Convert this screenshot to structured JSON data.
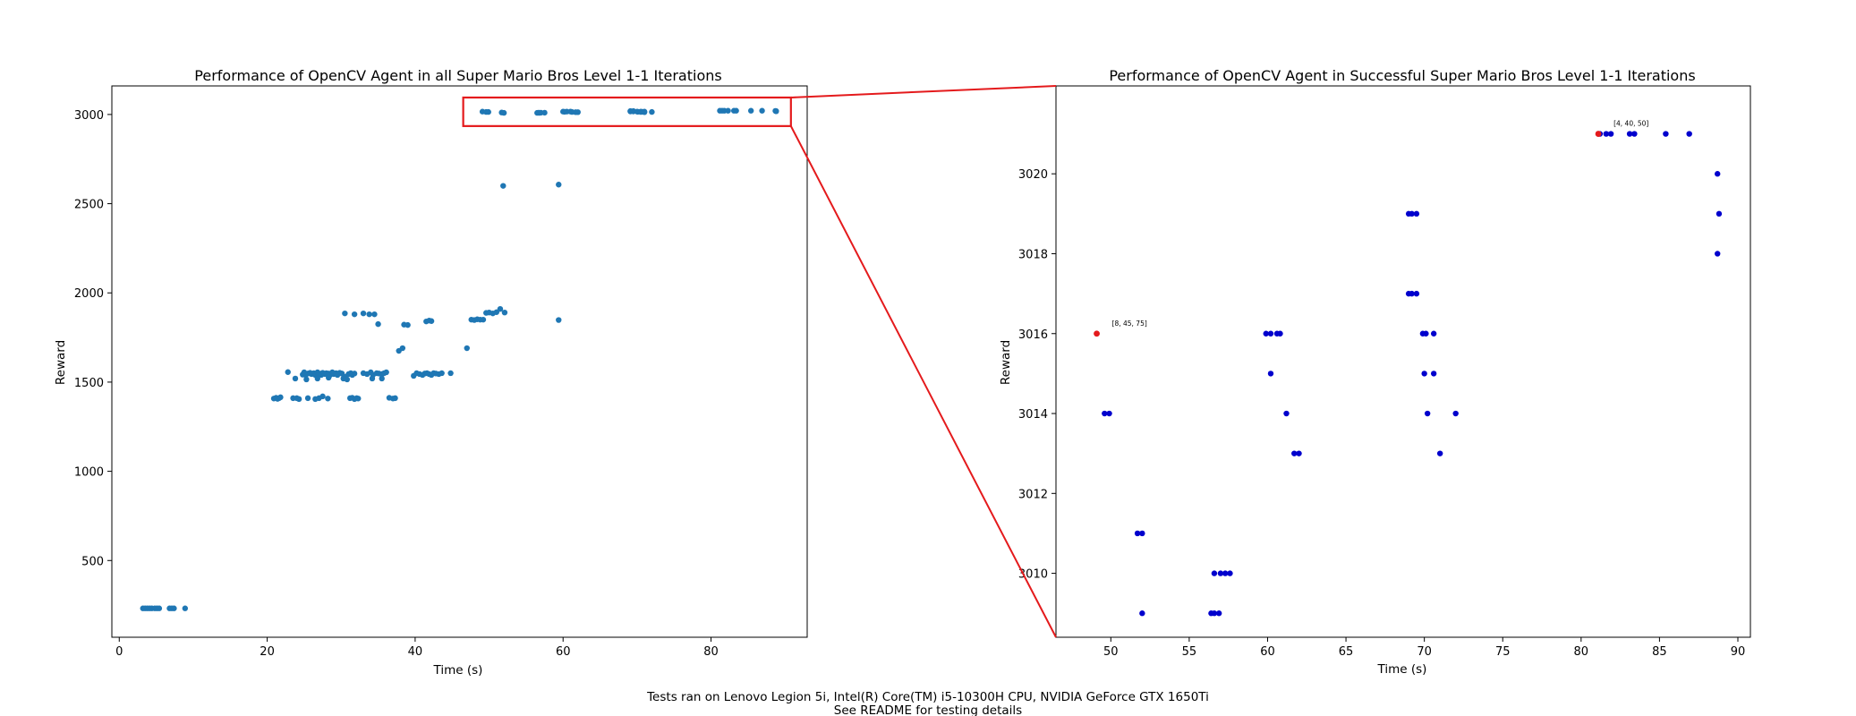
{
  "chart_data": [
    {
      "type": "scatter",
      "title": "Performance of OpenCV Agent in all Super Mario Bros Level 1-1 Iterations",
      "xlabel": "Time (s)",
      "ylabel": "Reward",
      "xlim": [
        -1,
        93
      ],
      "ylim": [
        70,
        3160
      ],
      "xticks": [
        0,
        20,
        40,
        60,
        80
      ],
      "yticks": [
        500,
        1000,
        1500,
        2000,
        2500,
        3000
      ],
      "color": "#1f77b4",
      "zoom_box": {
        "x": [
          46.5,
          90.8
        ],
        "y": [
          2935,
          3095
        ],
        "color": "#e41a1c"
      },
      "points": [
        [
          3.2,
          232
        ],
        [
          3.5,
          232
        ],
        [
          3.8,
          232
        ],
        [
          4.1,
          232
        ],
        [
          4.4,
          232
        ],
        [
          4.8,
          232
        ],
        [
          5.1,
          232
        ],
        [
          5.4,
          232
        ],
        [
          6.8,
          232
        ],
        [
          7.1,
          232
        ],
        [
          7.4,
          232
        ],
        [
          8.9,
          232
        ],
        [
          20.9,
          1408
        ],
        [
          21.2,
          1412
        ],
        [
          21.4,
          1406
        ],
        [
          21.6,
          1410
        ],
        [
          21.8,
          1415
        ],
        [
          22.8,
          1556
        ],
        [
          23.5,
          1410
        ],
        [
          24.0,
          1410
        ],
        [
          24.3,
          1405
        ],
        [
          24.8,
          1542
        ],
        [
          25.0,
          1555
        ],
        [
          25.2,
          1540
        ],
        [
          25.5,
          1548
        ],
        [
          25.8,
          1552
        ],
        [
          26.0,
          1545
        ],
        [
          26.3,
          1550
        ],
        [
          26.5,
          1540
        ],
        [
          26.8,
          1555
        ],
        [
          27.0,
          1548
        ],
        [
          27.3,
          1540
        ],
        [
          27.5,
          1552
        ],
        [
          27.8,
          1545
        ],
        [
          28.0,
          1550
        ],
        [
          28.3,
          1548
        ],
        [
          28.5,
          1540
        ],
        [
          28.8,
          1555
        ],
        [
          29.0,
          1545
        ],
        [
          29.3,
          1550
        ],
        [
          29.5,
          1540
        ],
        [
          29.8,
          1552
        ],
        [
          30.1,
          1548
        ],
        [
          30.3,
          1520
        ],
        [
          30.6,
          1530
        ],
        [
          30.8,
          1515
        ],
        [
          31.0,
          1545
        ],
        [
          31.3,
          1550
        ],
        [
          31.5,
          1540
        ],
        [
          31.8,
          1548
        ],
        [
          23.8,
          1520
        ],
        [
          25.3,
          1515
        ],
        [
          26.8,
          1520
        ],
        [
          28.3,
          1525
        ],
        [
          27.0,
          1410
        ],
        [
          27.5,
          1420
        ],
        [
          28.2,
          1408
        ],
        [
          25.5,
          1410
        ],
        [
          26.5,
          1405
        ],
        [
          31.2,
          1410
        ],
        [
          31.5,
          1412
        ],
        [
          31.8,
          1405
        ],
        [
          32.1,
          1410
        ],
        [
          32.3,
          1408
        ],
        [
          30.5,
          1885
        ],
        [
          31.8,
          1880
        ],
        [
          33.0,
          1885
        ],
        [
          33.8,
          1880
        ],
        [
          34.5,
          1880
        ],
        [
          35.0,
          1825
        ],
        [
          33.0,
          1550
        ],
        [
          33.5,
          1545
        ],
        [
          34.0,
          1555
        ],
        [
          34.3,
          1540
        ],
        [
          34.8,
          1550
        ],
        [
          35.1,
          1548
        ],
        [
          35.5,
          1545
        ],
        [
          35.8,
          1550
        ],
        [
          36.1,
          1555
        ],
        [
          34.2,
          1520
        ],
        [
          35.5,
          1520
        ],
        [
          36.5,
          1412
        ],
        [
          37.0,
          1408
        ],
        [
          37.3,
          1410
        ],
        [
          37.8,
          1675
        ],
        [
          38.3,
          1690
        ],
        [
          38.5,
          1822
        ],
        [
          39.0,
          1820
        ],
        [
          39.8,
          1535
        ],
        [
          40.2,
          1550
        ],
        [
          40.6,
          1545
        ],
        [
          41.0,
          1540
        ],
        [
          41.3,
          1548
        ],
        [
          41.6,
          1550
        ],
        [
          41.9,
          1545
        ],
        [
          42.2,
          1540
        ],
        [
          42.5,
          1550
        ],
        [
          42.8,
          1548
        ],
        [
          43.2,
          1545
        ],
        [
          43.6,
          1550
        ],
        [
          44.8,
          1550
        ],
        [
          41.5,
          1840
        ],
        [
          41.9,
          1845
        ],
        [
          42.2,
          1842
        ],
        [
          47.0,
          1690
        ],
        [
          47.6,
          1850
        ],
        [
          48.0,
          1848
        ],
        [
          48.4,
          1852
        ],
        [
          48.8,
          1850
        ],
        [
          49.2,
          1850
        ],
        [
          49.6,
          1888
        ],
        [
          50.0,
          1890
        ],
        [
          50.5,
          1885
        ],
        [
          51.0,
          1892
        ],
        [
          51.5,
          1910
        ],
        [
          52.1,
          1890
        ],
        [
          59.4,
          1848
        ],
        [
          51.9,
          2600
        ],
        [
          59.4,
          2607
        ],
        [
          49.1,
          3016
        ],
        [
          49.6,
          3014
        ],
        [
          49.9,
          3014
        ],
        [
          51.7,
          3011
        ],
        [
          52.0,
          3009
        ],
        [
          56.5,
          3009
        ],
        [
          56.8,
          3009
        ],
        [
          56.7,
          3010
        ],
        [
          57.0,
          3010
        ],
        [
          57.5,
          3010
        ],
        [
          60.0,
          3016
        ],
        [
          60.5,
          3016
        ],
        [
          61.0,
          3016
        ],
        [
          60.2,
          3015
        ],
        [
          61.2,
          3014
        ],
        [
          61.7,
          3013
        ],
        [
          62.0,
          3013
        ],
        [
          69.1,
          3019
        ],
        [
          69.5,
          3019
        ],
        [
          69.1,
          3017
        ],
        [
          69.5,
          3017
        ],
        [
          70.0,
          3016
        ],
        [
          70.5,
          3016
        ],
        [
          71.0,
          3016
        ],
        [
          70.1,
          3015
        ],
        [
          70.7,
          3015
        ],
        [
          70.5,
          3014
        ],
        [
          72.0,
          3014
        ],
        [
          71.0,
          3013
        ],
        [
          81.2,
          3021
        ],
        [
          81.5,
          3021
        ],
        [
          81.8,
          3021
        ],
        [
          82.3,
          3021
        ],
        [
          83.1,
          3021
        ],
        [
          83.4,
          3021
        ],
        [
          85.4,
          3021
        ],
        [
          86.9,
          3021
        ],
        [
          88.7,
          3020
        ],
        [
          88.8,
          3019
        ],
        [
          88.8,
          3018
        ]
      ]
    },
    {
      "type": "scatter",
      "title": "Performance of OpenCV Agent in Successful Super Mario Bros Level 1-1 Iterations",
      "xlabel": "Time (s)",
      "ylabel": "Reward",
      "xlim": [
        46.5,
        90.8
      ],
      "ylim": [
        3008.4,
        3022.2
      ],
      "xticks": [
        50,
        55,
        60,
        65,
        70,
        75,
        80,
        85,
        90
      ],
      "yticks": [
        3010,
        3012,
        3014,
        3016,
        3018,
        3020
      ],
      "color": "#0000cd",
      "points": [
        [
          49.6,
          3014
        ],
        [
          49.9,
          3014
        ],
        [
          51.7,
          3011
        ],
        [
          52.0,
          3011
        ],
        [
          52.0,
          3009
        ],
        [
          56.4,
          3009
        ],
        [
          56.6,
          3009
        ],
        [
          56.9,
          3009
        ],
        [
          56.6,
          3010
        ],
        [
          57.0,
          3010
        ],
        [
          57.3,
          3010
        ],
        [
          57.6,
          3010
        ],
        [
          59.9,
          3016
        ],
        [
          60.2,
          3016
        ],
        [
          60.6,
          3016
        ],
        [
          60.8,
          3016
        ],
        [
          60.2,
          3015
        ],
        [
          61.2,
          3014
        ],
        [
          61.7,
          3013
        ],
        [
          62.0,
          3013
        ],
        [
          69.0,
          3019
        ],
        [
          69.2,
          3019
        ],
        [
          69.5,
          3019
        ],
        [
          69.0,
          3017
        ],
        [
          69.2,
          3017
        ],
        [
          69.5,
          3017
        ],
        [
          69.9,
          3016
        ],
        [
          70.1,
          3016
        ],
        [
          70.6,
          3016
        ],
        [
          70.0,
          3015
        ],
        [
          70.6,
          3015
        ],
        [
          70.2,
          3014
        ],
        [
          72.0,
          3014
        ],
        [
          71.0,
          3013
        ],
        [
          81.2,
          3021
        ],
        [
          81.6,
          3021
        ],
        [
          81.9,
          3021
        ],
        [
          83.1,
          3021
        ],
        [
          83.4,
          3021
        ],
        [
          85.4,
          3021
        ],
        [
          86.9,
          3021
        ],
        [
          88.7,
          3020
        ],
        [
          88.8,
          3019
        ],
        [
          88.7,
          3018
        ]
      ],
      "highlights": [
        {
          "x": 49.1,
          "y": 3016,
          "label": "[8, 45, 75]",
          "color": "#e41a1c"
        },
        {
          "x": 81.1,
          "y": 3021,
          "label": "[4, 40, 50]",
          "color": "#e41a1c"
        }
      ]
    }
  ],
  "caption": {
    "line1": "Tests ran on Lenovo Legion 5i, Intel(R) Core(TM) i5-10300H CPU, NVIDIA GeForce GTX 1650Ti",
    "line2": "See README for testing details"
  },
  "connector_color": "#e41a1c"
}
